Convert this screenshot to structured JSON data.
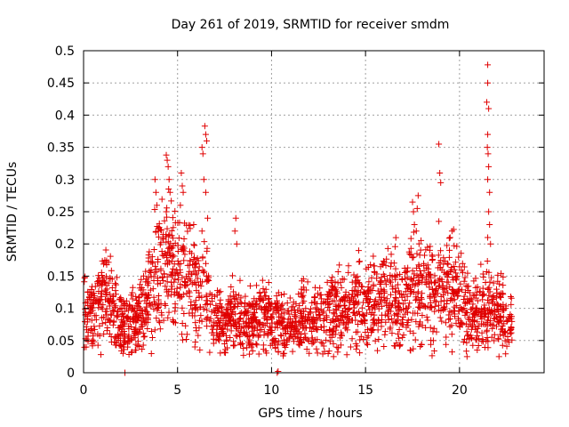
{
  "chart_data": {
    "type": "scatter",
    "title": "Day 261 of 2019, SRMTID for receiver smdm",
    "xlabel": "GPS time / hours",
    "ylabel": "SRMTID / TECUs",
    "xlim": [
      0,
      24.5
    ],
    "ylim": [
      0,
      0.5
    ],
    "x_ticks": [
      0,
      5,
      10,
      15,
      20
    ],
    "x_tick_labels": [
      "0",
      "5",
      "10",
      "15",
      "20"
    ],
    "y_ticks": [
      0,
      0.05,
      0.1,
      0.15,
      0.2,
      0.25,
      0.3,
      0.35,
      0.4,
      0.45,
      0.5
    ],
    "y_tick_labels": [
      "0",
      "0.05",
      "0.1",
      "0.15",
      "0.2",
      "0.25",
      "0.3",
      "0.35",
      "0.4",
      "0.45",
      "0.5"
    ],
    "grid": true,
    "marker": "+",
    "series": [
      {
        "name": "SRMTID",
        "color": "#e00000",
        "profile_hours": [
          0,
          0.5,
          1,
          1.5,
          2,
          2.5,
          3,
          3.5,
          4,
          4.5,
          5,
          5.5,
          6,
          6.5,
          7,
          7.5,
          8,
          8.5,
          9,
          9.5,
          10,
          10.5,
          11,
          11.5,
          12,
          12.5,
          13,
          13.5,
          14,
          14.5,
          15,
          15.5,
          16,
          16.5,
          17,
          17.5,
          18,
          18.5,
          19,
          19.5,
          20,
          20.5,
          21,
          21.5,
          22,
          22.5,
          22.8
        ],
        "profile_typical": [
          0.11,
          0.09,
          0.12,
          0.11,
          0.07,
          0.07,
          0.09,
          0.12,
          0.16,
          0.17,
          0.15,
          0.16,
          0.13,
          0.12,
          0.08,
          0.08,
          0.09,
          0.08,
          0.08,
          0.09,
          0.08,
          0.08,
          0.07,
          0.08,
          0.08,
          0.09,
          0.09,
          0.1,
          0.1,
          0.1,
          0.11,
          0.11,
          0.12,
          0.11,
          0.11,
          0.12,
          0.13,
          0.13,
          0.13,
          0.13,
          0.12,
          0.09,
          0.09,
          0.1,
          0.1,
          0.08,
          0.08
        ],
        "profile_spread": [
          0.035,
          0.03,
          0.035,
          0.035,
          0.025,
          0.025,
          0.03,
          0.035,
          0.05,
          0.05,
          0.045,
          0.05,
          0.045,
          0.04,
          0.025,
          0.025,
          0.025,
          0.025,
          0.025,
          0.025,
          0.025,
          0.025,
          0.02,
          0.025,
          0.025,
          0.025,
          0.025,
          0.03,
          0.03,
          0.03,
          0.035,
          0.035,
          0.035,
          0.035,
          0.04,
          0.045,
          0.045,
          0.045,
          0.04,
          0.04,
          0.035,
          0.03,
          0.03,
          0.035,
          0.03,
          0.025,
          0.025
        ],
        "spikes": [
          {
            "x": 3.8,
            "y": 0.3
          },
          {
            "x": 3.85,
            "y": 0.28
          },
          {
            "x": 3.9,
            "y": 0.26
          },
          {
            "x": 4.4,
            "y": 0.338
          },
          {
            "x": 4.45,
            "y": 0.33
          },
          {
            "x": 4.5,
            "y": 0.32
          },
          {
            "x": 4.55,
            "y": 0.3
          },
          {
            "x": 4.6,
            "y": 0.28
          },
          {
            "x": 4.4,
            "y": 0.25
          },
          {
            "x": 5.2,
            "y": 0.31
          },
          {
            "x": 5.25,
            "y": 0.29
          },
          {
            "x": 5.3,
            "y": 0.28
          },
          {
            "x": 5.15,
            "y": 0.26
          },
          {
            "x": 6.3,
            "y": 0.35
          },
          {
            "x": 6.35,
            "y": 0.34
          },
          {
            "x": 6.45,
            "y": 0.383
          },
          {
            "x": 6.5,
            "y": 0.37
          },
          {
            "x": 6.55,
            "y": 0.36
          },
          {
            "x": 6.4,
            "y": 0.3
          },
          {
            "x": 6.5,
            "y": 0.28
          },
          {
            "x": 6.6,
            "y": 0.24
          },
          {
            "x": 6.3,
            "y": 0.22
          },
          {
            "x": 8.1,
            "y": 0.24
          },
          {
            "x": 8.05,
            "y": 0.22
          },
          {
            "x": 8.15,
            "y": 0.2
          },
          {
            "x": 17.5,
            "y": 0.265
          },
          {
            "x": 17.55,
            "y": 0.25
          },
          {
            "x": 17.6,
            "y": 0.23
          },
          {
            "x": 17.7,
            "y": 0.22
          },
          {
            "x": 17.8,
            "y": 0.275
          },
          {
            "x": 17.75,
            "y": 0.255
          },
          {
            "x": 18.9,
            "y": 0.355
          },
          {
            "x": 18.95,
            "y": 0.31
          },
          {
            "x": 19.0,
            "y": 0.295
          },
          {
            "x": 18.9,
            "y": 0.235
          },
          {
            "x": 19.5,
            "y": 0.21
          },
          {
            "x": 19.6,
            "y": 0.22
          },
          {
            "x": 21.5,
            "y": 0.478
          },
          {
            "x": 21.5,
            "y": 0.45
          },
          {
            "x": 21.45,
            "y": 0.42
          },
          {
            "x": 21.55,
            "y": 0.41
          },
          {
            "x": 21.5,
            "y": 0.37
          },
          {
            "x": 21.48,
            "y": 0.35
          },
          {
            "x": 21.52,
            "y": 0.34
          },
          {
            "x": 21.55,
            "y": 0.32
          },
          {
            "x": 21.5,
            "y": 0.3
          },
          {
            "x": 21.6,
            "y": 0.28
          },
          {
            "x": 21.55,
            "y": 0.25
          },
          {
            "x": 21.6,
            "y": 0.23
          },
          {
            "x": 21.5,
            "y": 0.21
          },
          {
            "x": 21.65,
            "y": 0.2
          },
          {
            "x": 2.2,
            "y": 0.0
          },
          {
            "x": 10.3,
            "y": 0.0
          },
          {
            "x": 10.35,
            "y": 0.002
          },
          {
            "x": 2.1,
            "y": 0.03
          },
          {
            "x": 12.0,
            "y": 0.03
          },
          {
            "x": 20.4,
            "y": 0.025
          },
          {
            "x": 22.1,
            "y": 0.025
          },
          {
            "x": 13.3,
            "y": 0.025
          }
        ]
      }
    ]
  }
}
